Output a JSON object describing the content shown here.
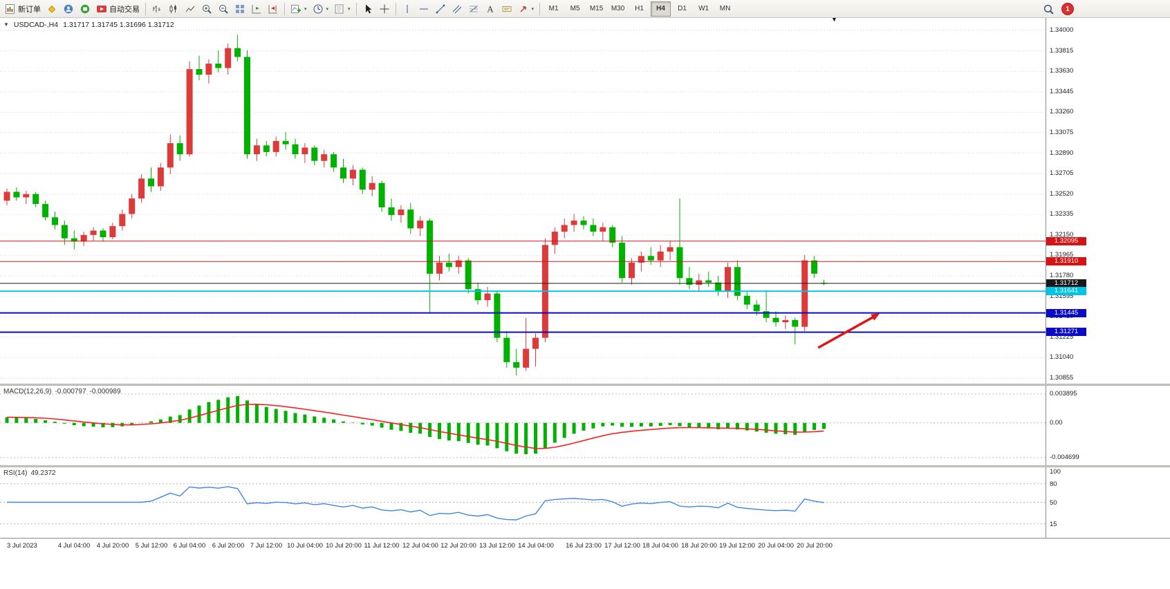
{
  "toolbar": {
    "new_order_label": "新订单",
    "autotrading_label": "自动交易",
    "timeframe_labels": [
      "M1",
      "M5",
      "M15",
      "M30",
      "H1",
      "H4",
      "D1",
      "W1",
      "MN"
    ],
    "active_timeframe": "H4",
    "notification_count": "1"
  },
  "chart_data": {
    "type": "candlestick",
    "title": "USDCAD-,H4",
    "ohlc_text": "1.31717 1.31745 1.31696 1.31712",
    "current": {
      "open": "1.31717",
      "high": "1.31745",
      "low": "1.31696",
      "close": "1.31712"
    },
    "up_color": "#dd3a3a",
    "down_color": "#00b200",
    "y_axis": {
      "max": 1.34,
      "min": 1.30855,
      "ticks": [
        "1.34000",
        "1.33815",
        "1.33630",
        "1.33445",
        "1.33260",
        "1.33075",
        "1.32890",
        "1.32705",
        "1.32520",
        "1.32335",
        "1.32150",
        "1.31965",
        "1.31780",
        "1.31595",
        "1.31410",
        "1.31225",
        "1.31040",
        "1.30855"
      ]
    },
    "x_labels": [
      {
        "text": "3 Jul 2023",
        "bar": 0
      },
      {
        "text": "4 Jul 04:00",
        "bar": 7
      },
      {
        "text": "4 Jul 20:00",
        "bar": 11
      },
      {
        "text": "5 Jul 12:00",
        "bar": 15
      },
      {
        "text": "6 Jul 04:00",
        "bar": 19
      },
      {
        "text": "6 Jul 20:00",
        "bar": 23
      },
      {
        "text": "7 Jul 12:00",
        "bar": 27
      },
      {
        "text": "10 Jul 04:00",
        "bar": 31
      },
      {
        "text": "10 Jul 20:00",
        "bar": 35
      },
      {
        "text": "11 Jul 12:00",
        "bar": 39
      },
      {
        "text": "12 Jul 04:00",
        "bar": 43
      },
      {
        "text": "12 Jul 20:00",
        "bar": 47
      },
      {
        "text": "13 Jul 12:00",
        "bar": 51
      },
      {
        "text": "14 Jul 04:00",
        "bar": 55
      },
      {
        "text": "16 Jul 23:00",
        "bar": 60
      },
      {
        "text": "17 Jul 12:00",
        "bar": 64
      },
      {
        "text": "18 Jul 04:00",
        "bar": 68
      },
      {
        "text": "18 Jul 20:00",
        "bar": 72
      },
      {
        "text": "19 Jul 12:00",
        "bar": 76
      },
      {
        "text": "20 Jul 04:00",
        "bar": 80
      },
      {
        "text": "20 Jul 20:00",
        "bar": 84
      }
    ],
    "candles": [
      [
        1.3246,
        1.3257,
        1.3242,
        1.3254
      ],
      [
        1.3254,
        1.3258,
        1.3246,
        1.3249
      ],
      [
        1.3249,
        1.3255,
        1.3243,
        1.3252
      ],
      [
        1.3252,
        1.3254,
        1.324,
        1.3243
      ],
      [
        1.3243,
        1.3246,
        1.3228,
        1.3231
      ],
      [
        1.3231,
        1.3236,
        1.322,
        1.3224
      ],
      [
        1.3224,
        1.3228,
        1.3206,
        1.3212
      ],
      [
        1.3212,
        1.3219,
        1.3202,
        1.3209
      ],
      [
        1.3209,
        1.3218,
        1.3205,
        1.3215
      ],
      [
        1.3215,
        1.3222,
        1.321,
        1.3219
      ],
      [
        1.3219,
        1.3221,
        1.3209,
        1.3213
      ],
      [
        1.3213,
        1.3226,
        1.3211,
        1.3223
      ],
      [
        1.3223,
        1.3238,
        1.3219,
        1.3234
      ],
      [
        1.3234,
        1.3252,
        1.323,
        1.3248
      ],
      [
        1.3248,
        1.327,
        1.3244,
        1.3266
      ],
      [
        1.3266,
        1.3276,
        1.3254,
        1.3259
      ],
      [
        1.3259,
        1.328,
        1.3255,
        1.3276
      ],
      [
        1.3276,
        1.3306,
        1.327,
        1.3298
      ],
      [
        1.3298,
        1.3305,
        1.3282,
        1.3288
      ],
      [
        1.3288,
        1.3372,
        1.3286,
        1.3365
      ],
      [
        1.3365,
        1.3377,
        1.3355,
        1.336
      ],
      [
        1.336,
        1.3374,
        1.3352,
        1.337
      ],
      [
        1.337,
        1.3382,
        1.3362,
        1.3366
      ],
      [
        1.3366,
        1.3388,
        1.336,
        1.3384
      ],
      [
        1.3384,
        1.3396,
        1.3372,
        1.3376
      ],
      [
        1.3376,
        1.3382,
        1.3284,
        1.3288
      ],
      [
        1.3288,
        1.3302,
        1.3282,
        1.3296
      ],
      [
        1.3296,
        1.33,
        1.3286,
        1.329
      ],
      [
        1.329,
        1.3304,
        1.3286,
        1.33
      ],
      [
        1.33,
        1.3308,
        1.3292,
        1.3297
      ],
      [
        1.3297,
        1.3302,
        1.3284,
        1.3288
      ],
      [
        1.3288,
        1.3298,
        1.328,
        1.3294
      ],
      [
        1.3294,
        1.3296,
        1.3278,
        1.3282
      ],
      [
        1.3282,
        1.3292,
        1.3276,
        1.3288
      ],
      [
        1.3288,
        1.329,
        1.3272,
        1.3276
      ],
      [
        1.3276,
        1.3284,
        1.3262,
        1.3266
      ],
      [
        1.3266,
        1.3278,
        1.326,
        1.3274
      ],
      [
        1.3274,
        1.3276,
        1.3252,
        1.3256
      ],
      [
        1.3256,
        1.3268,
        1.325,
        1.3262
      ],
      [
        1.3262,
        1.3264,
        1.3236,
        1.324
      ],
      [
        1.324,
        1.3248,
        1.3228,
        1.3233
      ],
      [
        1.3233,
        1.3242,
        1.3226,
        1.3238
      ],
      [
        1.3238,
        1.3244,
        1.3216,
        1.3221
      ],
      [
        1.3221,
        1.3232,
        1.3214,
        1.3228
      ],
      [
        1.3228,
        1.323,
        1.3144,
        1.318
      ],
      [
        1.318,
        1.3196,
        1.3174,
        1.319
      ],
      [
        1.319,
        1.3198,
        1.3182,
        1.3186
      ],
      [
        1.3186,
        1.3196,
        1.318,
        1.3192
      ],
      [
        1.3192,
        1.3194,
        1.3162,
        1.3166
      ],
      [
        1.3166,
        1.3172,
        1.3152,
        1.3156
      ],
      [
        1.3156,
        1.3168,
        1.315,
        1.3162
      ],
      [
        1.3162,
        1.3164,
        1.3118,
        1.3122
      ],
      [
        1.3122,
        1.3128,
        1.3095,
        1.31
      ],
      [
        1.31,
        1.3112,
        1.3088,
        1.3095
      ],
      [
        1.3095,
        1.314,
        1.3092,
        1.3112
      ],
      [
        1.3112,
        1.3126,
        1.3096,
        1.3122
      ],
      [
        1.3122,
        1.3212,
        1.3118,
        1.3206
      ],
      [
        1.3206,
        1.3222,
        1.3198,
        1.3218
      ],
      [
        1.3218,
        1.323,
        1.3212,
        1.3224
      ],
      [
        1.3224,
        1.3234,
        1.3218,
        1.3228
      ],
      [
        1.3228,
        1.3232,
        1.322,
        1.3224
      ],
      [
        1.3224,
        1.323,
        1.3214,
        1.3218
      ],
      [
        1.3218,
        1.3226,
        1.321,
        1.3222
      ],
      [
        1.3222,
        1.3224,
        1.3204,
        1.3208
      ],
      [
        1.3208,
        1.3214,
        1.3172,
        1.3176
      ],
      [
        1.3176,
        1.3194,
        1.317,
        1.319
      ],
      [
        1.319,
        1.32,
        1.3182,
        1.3196
      ],
      [
        1.3196,
        1.3204,
        1.3188,
        1.3192
      ],
      [
        1.3192,
        1.3206,
        1.3186,
        1.32
      ],
      [
        1.32,
        1.321,
        1.3192,
        1.3204
      ],
      [
        1.3204,
        1.3248,
        1.317,
        1.3176
      ],
      [
        1.3176,
        1.3186,
        1.3166,
        1.317
      ],
      [
        1.317,
        1.318,
        1.3164,
        1.3174
      ],
      [
        1.3174,
        1.3182,
        1.3168,
        1.3172
      ],
      [
        1.3172,
        1.3178,
        1.316,
        1.3164
      ],
      [
        1.3164,
        1.319,
        1.3158,
        1.3186
      ],
      [
        1.3186,
        1.3192,
        1.3156,
        1.316
      ],
      [
        1.316,
        1.3164,
        1.3148,
        1.3152
      ],
      [
        1.3152,
        1.3156,
        1.3142,
        1.3146
      ],
      [
        1.3146,
        1.3165,
        1.3136,
        1.314
      ],
      [
        1.314,
        1.3146,
        1.3132,
        1.3136
      ],
      [
        1.3136,
        1.3142,
        1.313,
        1.3138
      ],
      [
        1.3138,
        1.314,
        1.3116,
        1.3132
      ],
      [
        1.3132,
        1.3197,
        1.3128,
        1.3192
      ],
      [
        1.3192,
        1.3196,
        1.3176,
        1.318
      ],
      [
        1.31717,
        1.31745,
        1.31696,
        1.31712
      ]
    ],
    "hlines": [
      {
        "name": "resistance-line-upper",
        "price": 1.32095,
        "label": "1.32095",
        "color": "#d41414",
        "width": 1
      },
      {
        "name": "resistance-line-lower",
        "price": 1.3191,
        "label": "1.31910",
        "color": "#d41414",
        "width": 1
      },
      {
        "name": "current-price-line",
        "price": 1.31712,
        "label": "1.31712",
        "color": "#181818",
        "width": 1
      },
      {
        "name": "support-line-cyan",
        "price": 1.31641,
        "label": "1.31641",
        "color": "#00c4e8",
        "width": 2
      },
      {
        "name": "support-line-mid",
        "price": 1.31445,
        "label": "1.31445",
        "color": "#0a0ac8",
        "width": 2
      },
      {
        "name": "support-line-lower",
        "price": 1.31271,
        "label": "1.31271",
        "color": "#0a0ac8",
        "width": 2
      }
    ],
    "trend_arrow": {
      "bar_from": 84.4,
      "price_from": 1.3113,
      "bar_to": 90.8,
      "price_to": 1.3144,
      "color": "#e01515"
    },
    "macd": {
      "name": "MACD(12,26,9)",
      "macd_value": "-0.000797",
      "signal_value": "-0.000989",
      "axis_max": "0.003895",
      "axis_zero": "0.00",
      "axis_min": "-0.004699",
      "hist_color": "#00b200",
      "signal_color": "#ff1e1e"
    },
    "rsi": {
      "name": "RSI(14)",
      "value": "49.2372",
      "line_color": "#3f86e0",
      "levels": [
        80,
        50,
        15
      ],
      "axis_labels": [
        {
          "text": "100",
          "value": 100
        },
        {
          "text": "80",
          "value": 80
        },
        {
          "text": "50",
          "value": 50
        },
        {
          "text": "15",
          "value": 15
        }
      ]
    }
  }
}
